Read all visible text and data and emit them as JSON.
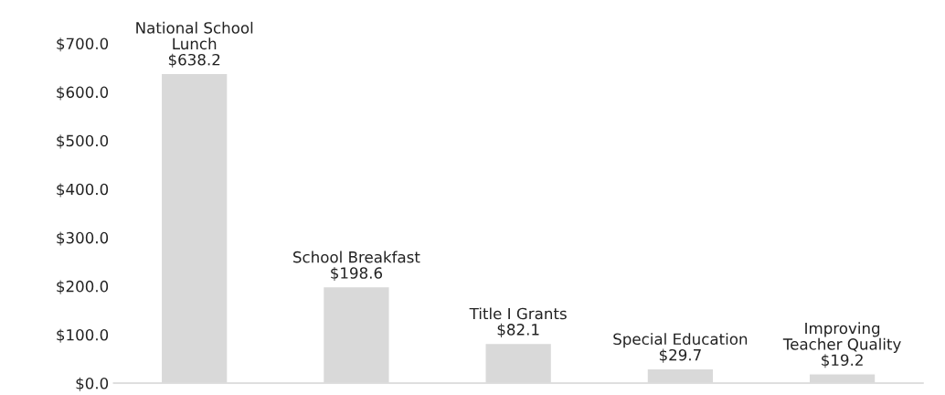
{
  "chart_data": {
    "type": "bar",
    "categories": [
      "National School\nLunch",
      "School Breakfast",
      "Title I Grants",
      "Special Education",
      "Improving\nTeacher Quality"
    ],
    "values": [
      638.2,
      198.6,
      82.1,
      29.7,
      19.2
    ],
    "value_labels": [
      "$638.2",
      "$198.6",
      "$82.1",
      "$29.7",
      "$19.2"
    ],
    "color": "#d9d9d9",
    "ylim": [
      0,
      700
    ],
    "yticks": [
      {
        "value": 0,
        "label": "$0.0"
      },
      {
        "value": 100,
        "label": "$100.0"
      },
      {
        "value": 200,
        "label": "$200.0"
      },
      {
        "value": 300,
        "label": "$300.0"
      },
      {
        "value": 400,
        "label": "$400.0"
      },
      {
        "value": 500,
        "label": "$500.0"
      },
      {
        "value": 600,
        "label": "$600.0"
      },
      {
        "value": 700,
        "label": "$700.0"
      }
    ],
    "tick_labels": "y",
    "grid": false,
    "legend": false
  }
}
